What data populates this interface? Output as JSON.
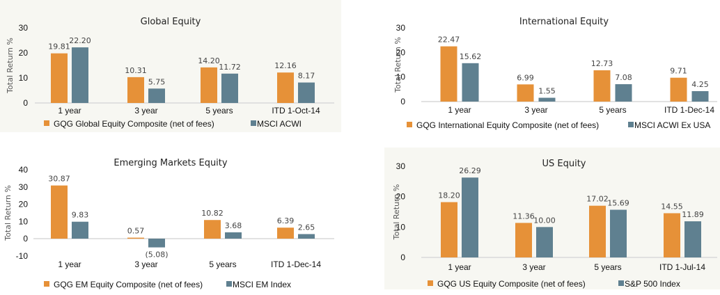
{
  "colors": {
    "composite": "#e69138",
    "index": "#5f8090",
    "axis": "#d9d9d9"
  },
  "chart_data": [
    {
      "type": "bar",
      "title": "Global Equity",
      "xlabel": "",
      "ylabel": "Total Return %",
      "ylim": [
        0,
        30
      ],
      "yticks": [
        0,
        10,
        20,
        30
      ],
      "categories": [
        "1 year",
        "3 year",
        "5 years",
        "ITD 1-Oct-14"
      ],
      "series": [
        {
          "name": "GQG Global Equity Composite (net of fees)",
          "values": [
            19.81,
            10.31,
            14.2,
            12.16
          ],
          "labels": [
            "19.81",
            "10.31",
            "14.20",
            "12.16"
          ]
        },
        {
          "name": "MSCI ACWI",
          "values": [
            22.2,
            5.75,
            11.72,
            8.17
          ],
          "labels": [
            "22.20",
            "5.75",
            "11.72",
            "8.17"
          ]
        }
      ],
      "legend": "bottom",
      "grid": false
    },
    {
      "type": "bar",
      "title": "International Equity",
      "xlabel": "",
      "ylabel": "Total Return %",
      "ylim": [
        0,
        30
      ],
      "yticks": [
        0,
        10,
        20,
        30
      ],
      "categories": [
        "1 year",
        "3 year",
        "5 years",
        "ITD 1-Dec-14"
      ],
      "series": [
        {
          "name": "GQG International Equity Composite (net of fees)",
          "values": [
            22.47,
            6.99,
            12.73,
            9.71
          ],
          "labels": [
            "22.47",
            "6.99",
            "12.73",
            "9.71"
          ]
        },
        {
          "name": "MSCI ACWI Ex USA",
          "values": [
            15.62,
            1.55,
            7.08,
            4.25
          ],
          "labels": [
            "15.62",
            "1.55",
            "7.08",
            "4.25"
          ]
        }
      ],
      "legend": "bottom",
      "grid": false
    },
    {
      "type": "bar",
      "title": "Emerging Markets Equity",
      "xlabel": "",
      "ylabel": "Total Return %",
      "ylim": [
        -10,
        40
      ],
      "yticks": [
        -10,
        0,
        10,
        20,
        30,
        40
      ],
      "categories": [
        "1 year",
        "3 year",
        "5 years",
        "ITD 1-Dec-14"
      ],
      "series": [
        {
          "name": "GQG EM Equity Composite (net of fees)",
          "values": [
            30.87,
            0.57,
            10.82,
            6.39
          ],
          "labels": [
            "30.87",
            "0.57",
            "10.82",
            "6.39"
          ]
        },
        {
          "name": "MSCI EM Index",
          "values": [
            9.83,
            -5.08,
            3.68,
            2.65
          ],
          "labels": [
            "9.83",
            "(5.08)",
            "3.68",
            "2.65"
          ]
        }
      ],
      "legend": "bottom",
      "grid": false
    },
    {
      "type": "bar",
      "title": "US Equity",
      "xlabel": "",
      "ylabel": "Total Return %",
      "ylim": [
        0,
        30
      ],
      "yticks": [
        0,
        10,
        20,
        30
      ],
      "categories": [
        "1 year",
        "3 year",
        "5 years",
        "ITD 1-Jul-14"
      ],
      "series": [
        {
          "name": "GQG US Equity Composite (net of fees)",
          "values": [
            18.2,
            11.36,
            17.02,
            14.55
          ],
          "labels": [
            "18.20",
            "11.36",
            "17.02",
            "14.55"
          ]
        },
        {
          "name": "S&P 500 Index",
          "values": [
            26.29,
            10.0,
            15.69,
            11.89
          ],
          "labels": [
            "26.29",
            "10.00",
            "15.69",
            "11.89"
          ]
        }
      ],
      "legend": "bottom",
      "grid": false
    }
  ]
}
